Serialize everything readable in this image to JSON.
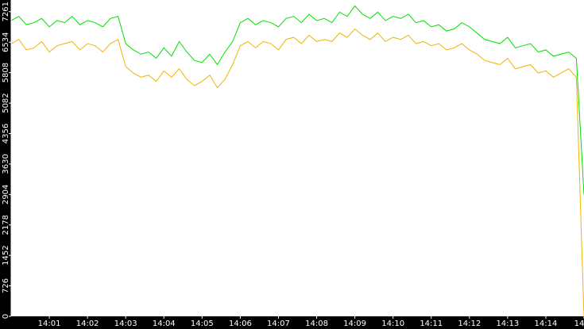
{
  "chart_data": {
    "type": "line",
    "x": [
      0,
      0.2,
      0.4,
      0.6,
      0.8,
      1,
      1.2,
      1.4,
      1.6,
      1.8,
      2,
      2.2,
      2.4,
      2.6,
      2.8,
      3,
      3.2,
      3.4,
      3.6,
      3.8,
      4,
      4.2,
      4.4,
      4.6,
      4.8,
      5,
      5.2,
      5.4,
      5.6,
      5.8,
      6,
      6.2,
      6.4,
      6.6,
      6.8,
      7,
      7.2,
      7.4,
      7.6,
      7.8,
      8,
      8.2,
      8.4,
      8.6,
      8.8,
      9,
      9.2,
      9.4,
      9.6,
      9.8,
      10,
      10.2,
      10.4,
      10.6,
      10.8,
      11,
      11.2,
      11.4,
      11.6,
      11.8,
      12,
      12.2,
      12.4,
      12.6,
      12.8,
      13,
      13.2,
      13.4,
      13.6,
      13.8,
      14,
      14.2,
      14.4,
      14.6,
      14.8,
      15
    ],
    "series": [
      {
        "color": "#00e000",
        "values": [
          7050,
          7150,
          6950,
          7000,
          7100,
          6900,
          7050,
          7000,
          7150,
          6950,
          7050,
          7000,
          6900,
          7100,
          7150,
          6500,
          6350,
          6250,
          6300,
          6150,
          6400,
          6200,
          6550,
          6300,
          6100,
          6050,
          6250,
          6000,
          6300,
          6550,
          7000,
          7100,
          6950,
          7050,
          7000,
          6900,
          7100,
          7150,
          7000,
          7200,
          7050,
          7100,
          7000,
          7250,
          7150,
          7400,
          7200,
          7100,
          7250,
          7050,
          7150,
          7100,
          7200,
          7000,
          7050,
          6900,
          6950,
          6800,
          6850,
          7000,
          6900,
          6750,
          6600,
          6550,
          6500,
          6650,
          6400,
          6450,
          6500,
          6300,
          6350,
          6200,
          6250,
          6300,
          6150,
          2900
        ]
      },
      {
        "color": "#f0b400",
        "values": [
          6500,
          6600,
          6350,
          6400,
          6550,
          6300,
          6450,
          6500,
          6550,
          6350,
          6500,
          6450,
          6300,
          6500,
          6600,
          5950,
          5800,
          5700,
          5750,
          5600,
          5850,
          5700,
          5900,
          5650,
          5500,
          5600,
          5750,
          5450,
          5650,
          6000,
          6450,
          6550,
          6400,
          6550,
          6500,
          6350,
          6600,
          6650,
          6500,
          6700,
          6550,
          6600,
          6550,
          6750,
          6650,
          6850,
          6700,
          6600,
          6750,
          6550,
          6650,
          6600,
          6700,
          6500,
          6550,
          6450,
          6500,
          6350,
          6400,
          6500,
          6350,
          6250,
          6100,
          6050,
          6000,
          6150,
          5900,
          5950,
          6000,
          5800,
          5850,
          5700,
          5800,
          5900,
          5700,
          0
        ]
      }
    ],
    "xlim": [
      0,
      15
    ],
    "xticks": [
      {
        "value": 1,
        "label": "14:01"
      },
      {
        "value": 2,
        "label": "14:02"
      },
      {
        "value": 3,
        "label": "14:03"
      },
      {
        "value": 4,
        "label": "14:04"
      },
      {
        "value": 5,
        "label": "14:05"
      },
      {
        "value": 6,
        "label": "14:06"
      },
      {
        "value": 7,
        "label": "14:07"
      },
      {
        "value": 8,
        "label": "14:08"
      },
      {
        "value": 9,
        "label": "14:09"
      },
      {
        "value": 10,
        "label": "14:10"
      },
      {
        "value": 11,
        "label": "14:11"
      },
      {
        "value": 12,
        "label": "14:12"
      },
      {
        "value": 13,
        "label": "14:13"
      },
      {
        "value": 14,
        "label": "14:14"
      },
      {
        "value": 15,
        "label": "14"
      }
    ],
    "ylim": [
      0,
      7540
    ],
    "yticks": [
      0,
      726,
      1452,
      2178,
      2904,
      3630,
      4356,
      5082,
      5808,
      6534,
      7261
    ]
  }
}
